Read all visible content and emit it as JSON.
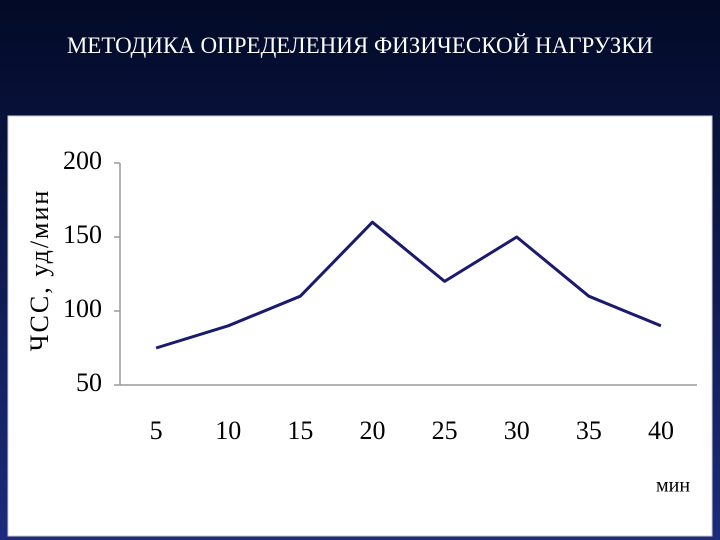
{
  "chart_data": {
    "type": "line",
    "title": "МЕТОДИКА ОПРЕДЕЛЕНИЯ ФИЗИЧЕСКОЙ НАГРУЗКИ",
    "y_label": "ЧСС, уд/мин",
    "x_label": "мин",
    "categories": [
      "5",
      "10",
      "15",
      "20",
      "25",
      "30",
      "35",
      "40"
    ],
    "series": [
      {
        "name": "ЧСС",
        "color": "#1a1a6e",
        "values": [
          75,
          90,
          110,
          160,
          120,
          150,
          110,
          90
        ]
      }
    ],
    "ylim": [
      50,
      200
    ],
    "yticks": [
      50,
      100,
      150,
      200
    ],
    "grid": false
  }
}
